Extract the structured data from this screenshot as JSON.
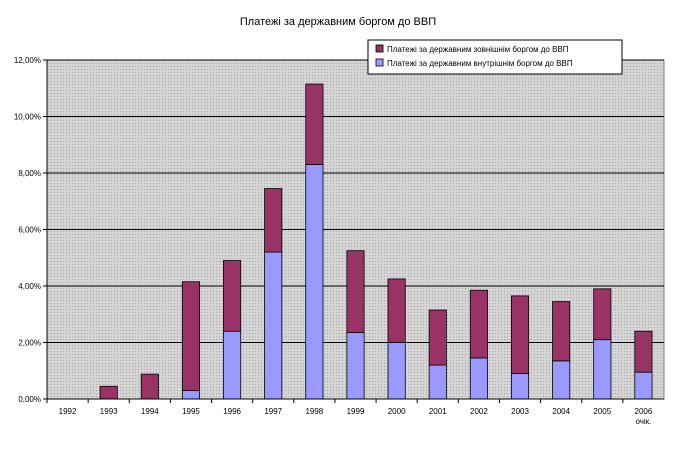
{
  "chart_data": {
    "type": "bar",
    "stacked": true,
    "title": "Платежі за державним боргом до ВВП",
    "xlabel": "",
    "ylabel": "",
    "categories": [
      "1992",
      "1993",
      "1994",
      "1995",
      "1996",
      "1997",
      "1998",
      "1999",
      "2000",
      "2001",
      "2002",
      "2003",
      "2004",
      "2005",
      "2006"
    ],
    "category_sublabels": {
      "2006": "очік."
    },
    "ylim": [
      0,
      12
    ],
    "yticks": [
      0,
      2,
      4,
      6,
      8,
      10,
      12
    ],
    "ytick_labels": [
      "0,00%",
      "2,00%",
      "4,00%",
      "6,00%",
      "8,00%",
      "10,00%",
      "12,00%"
    ],
    "grid": true,
    "legend_position": "top-right",
    "series": [
      {
        "name": "Платежі за державним внутрішнім боргом до ВВП",
        "color": "#9999ff",
        "values": [
          0,
          0,
          0,
          0.3,
          2.4,
          5.2,
          8.3,
          2.35,
          2.0,
          1.2,
          1.45,
          0.9,
          1.35,
          2.1,
          0.95
        ]
      },
      {
        "name": "Платежі за державним зовнішнім боргом до ВВП",
        "color": "#993366",
        "values": [
          0,
          0.45,
          0.88,
          3.85,
          2.5,
          2.25,
          2.85,
          2.9,
          2.25,
          1.95,
          2.4,
          2.75,
          2.1,
          1.8,
          1.45
        ]
      }
    ],
    "colors": {
      "plot_bg": "#c0c0c0",
      "gridline": "#000000"
    }
  }
}
